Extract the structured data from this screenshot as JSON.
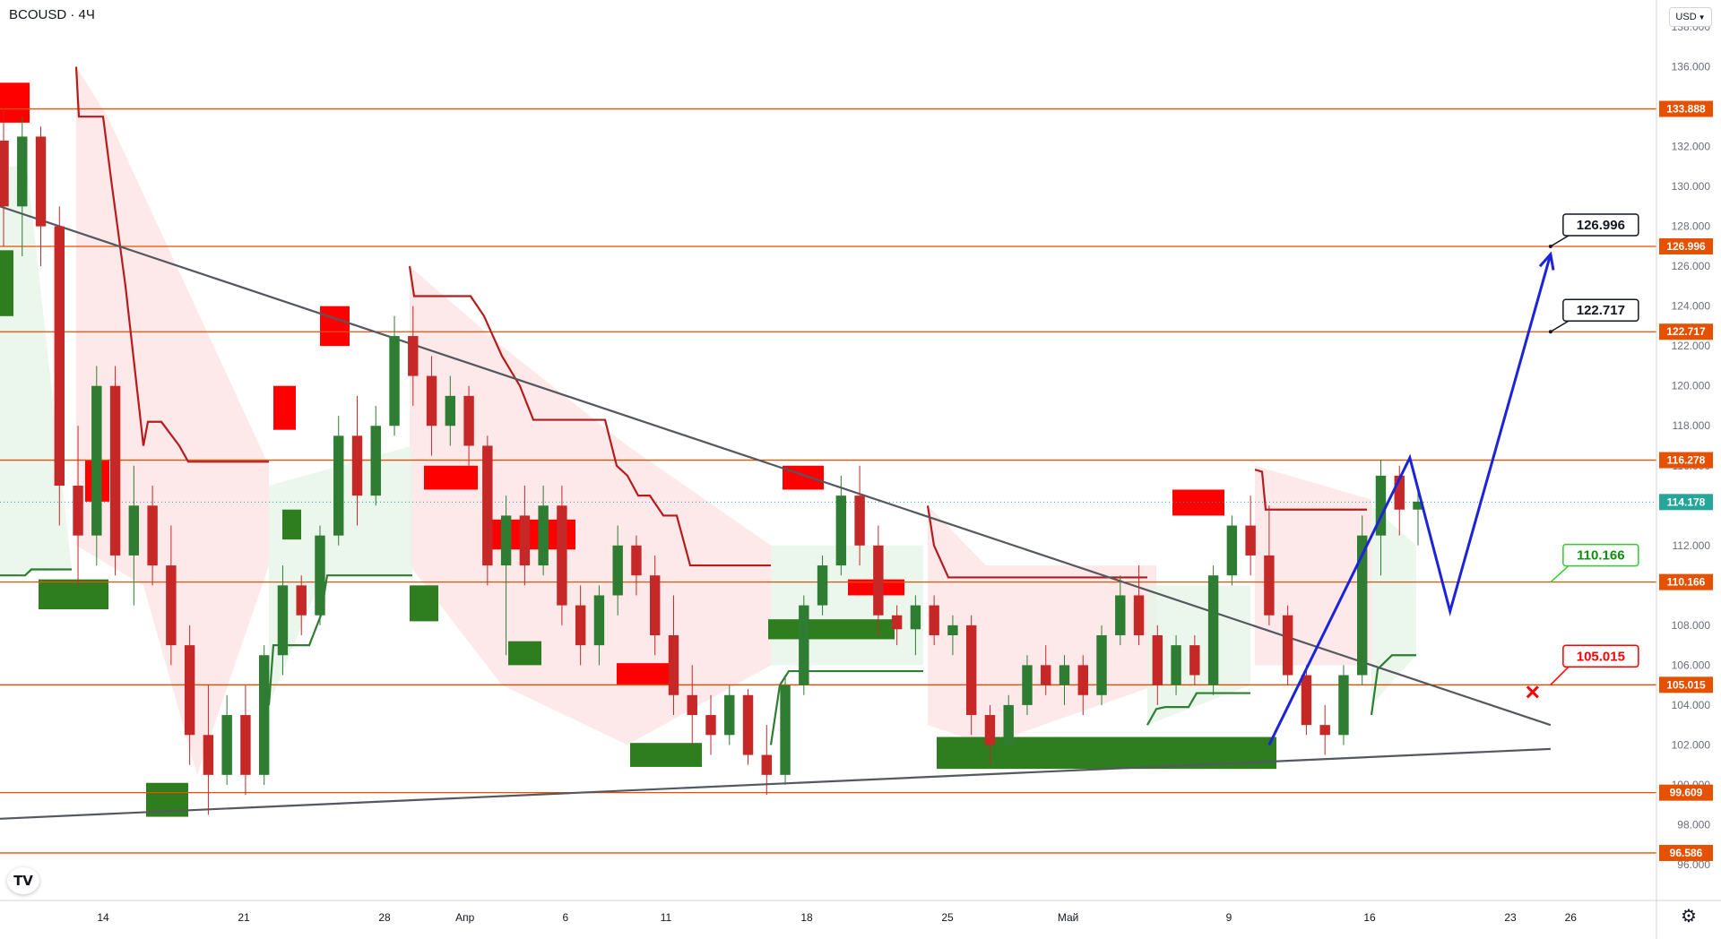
{
  "header": {
    "symbol": "BCOUSD",
    "separator": "·",
    "interval": "4Ч",
    "currency": "USD"
  },
  "icons": {
    "logo": "tradingview-logo-icon",
    "settings": "gear-icon",
    "currency_menu": "chevron-down-icon"
  },
  "colors": {
    "level_line": "#e65100",
    "level_label_bg": "#e65100",
    "price_label_bg": "#26a69a",
    "candle_up": "#2e7d32",
    "candle_down": "#c62828",
    "supply_zone": "#ff0000",
    "demand_zone": "#2e7d1e",
    "stop_bear": "#b71c1c",
    "stop_bull": "#2e7d32",
    "trendline": "#555761",
    "forecast": "#1b24d8",
    "target_callout_border": "#131722",
    "tp_callout": "#33cc33",
    "sl_callout": "#ff0000"
  },
  "chart_data": {
    "type": "candlestick",
    "symbol": "BCOUSD",
    "interval": "4Ч",
    "ylim": [
      96,
      138
    ],
    "y_ticks": [
      "96.000",
      "98.000",
      "100.000",
      "102.000",
      "104.000",
      "106.000",
      "108.000",
      "110.000",
      "112.000",
      "114.000",
      "116.000",
      "118.000",
      "120.000",
      "122.000",
      "124.000",
      "126.000",
      "128.000",
      "130.000",
      "132.000",
      "134.000",
      "136.000",
      "138.000"
    ],
    "x_ticks": [
      "14",
      "21",
      "28",
      "Апр",
      "6",
      "11",
      "18",
      "25",
      "Май",
      "9",
      "16",
      "23",
      "26"
    ],
    "last_price": "114.178",
    "horizontal_levels": [
      {
        "value": 133.888,
        "label": "133.888"
      },
      {
        "value": 126.996,
        "label": "126.996"
      },
      {
        "value": 122.717,
        "label": "122.717"
      },
      {
        "value": 116.278,
        "label": "116.278"
      },
      {
        "value": 110.166,
        "label": "110.166"
      },
      {
        "value": 105.015,
        "label": "105.015"
      },
      {
        "value": 99.609,
        "label": "99.609"
      },
      {
        "value": 96.586,
        "label": "96.586"
      }
    ],
    "callouts": [
      {
        "label": "126.996",
        "price": 126.996,
        "style": "target"
      },
      {
        "label": "122.717",
        "price": 122.717,
        "style": "target"
      },
      {
        "label": "110.166",
        "price": 110.166,
        "style": "take-profit"
      },
      {
        "label": "105.015",
        "price": 105.015,
        "style": "stop-loss"
      }
    ],
    "trendlines": [
      {
        "from": {
          "date": "Mar 08",
          "price": 129.0
        },
        "to": {
          "date": "May 25",
          "price": 103.0
        }
      },
      {
        "from": {
          "date": "Mar 08",
          "price": 98.3
        },
        "to": {
          "date": "May 25",
          "price": 101.8
        }
      }
    ],
    "forecast_path": [
      {
        "date": "May 11",
        "price": 102.0
      },
      {
        "date": "May 18",
        "price": 116.4
      },
      {
        "date": "May 20",
        "price": 108.7
      },
      {
        "date": "May 25",
        "price": 126.6
      }
    ],
    "candles": [
      {
        "o": 132.3,
        "h": 134.0,
        "l": 127.0,
        "c": 129.0
      },
      {
        "o": 129.0,
        "h": 133.5,
        "l": 126.5,
        "c": 132.5
      },
      {
        "o": 132.5,
        "h": 133.0,
        "l": 126.0,
        "c": 128.0
      },
      {
        "o": 128.0,
        "h": 129.0,
        "l": 113.0,
        "c": 115.0
      },
      {
        "o": 115.0,
        "h": 118.0,
        "l": 110.0,
        "c": 112.5
      },
      {
        "o": 112.5,
        "h": 121.0,
        "l": 111.0,
        "c": 120.0
      },
      {
        "o": 120.0,
        "h": 121.0,
        "l": 110.5,
        "c": 111.5
      },
      {
        "o": 111.5,
        "h": 116.0,
        "l": 109.0,
        "c": 114.0
      },
      {
        "o": 114.0,
        "h": 115.0,
        "l": 110.0,
        "c": 111.0
      },
      {
        "o": 111.0,
        "h": 113.0,
        "l": 106.0,
        "c": 107.0
      },
      {
        "o": 107.0,
        "h": 108.0,
        "l": 101.0,
        "c": 102.5
      },
      {
        "o": 102.5,
        "h": 105.0,
        "l": 98.5,
        "c": 100.5
      },
      {
        "o": 100.5,
        "h": 104.5,
        "l": 100.0,
        "c": 103.5
      },
      {
        "o": 103.5,
        "h": 105.0,
        "l": 99.5,
        "c": 100.5
      },
      {
        "o": 100.5,
        "h": 107.0,
        "l": 100.0,
        "c": 106.5
      },
      {
        "o": 106.5,
        "h": 111.0,
        "l": 105.5,
        "c": 110.0
      },
      {
        "o": 110.0,
        "h": 110.5,
        "l": 107.5,
        "c": 108.5
      },
      {
        "o": 108.5,
        "h": 113.0,
        "l": 108.0,
        "c": 112.5
      },
      {
        "o": 112.5,
        "h": 118.5,
        "l": 112.0,
        "c": 117.5
      },
      {
        "o": 117.5,
        "h": 119.5,
        "l": 113.0,
        "c": 114.5
      },
      {
        "o": 114.5,
        "h": 119.0,
        "l": 114.0,
        "c": 118.0
      },
      {
        "o": 118.0,
        "h": 123.5,
        "l": 117.5,
        "c": 122.5
      },
      {
        "o": 122.5,
        "h": 124.0,
        "l": 119.0,
        "c": 120.5
      },
      {
        "o": 120.5,
        "h": 121.5,
        "l": 116.5,
        "c": 118.0
      },
      {
        "o": 118.0,
        "h": 120.5,
        "l": 117.0,
        "c": 119.5
      },
      {
        "o": 119.5,
        "h": 120.0,
        "l": 116.0,
        "c": 117.0
      },
      {
        "o": 117.0,
        "h": 117.5,
        "l": 110.0,
        "c": 111.0
      },
      {
        "o": 111.0,
        "h": 114.5,
        "l": 106.5,
        "c": 113.5
      },
      {
        "o": 113.5,
        "h": 115.0,
        "l": 110.0,
        "c": 111.0
      },
      {
        "o": 111.0,
        "h": 115.0,
        "l": 110.5,
        "c": 114.0
      },
      {
        "o": 114.0,
        "h": 115.0,
        "l": 108.0,
        "c": 109.0
      },
      {
        "o": 109.0,
        "h": 110.0,
        "l": 106.0,
        "c": 107.0
      },
      {
        "o": 107.0,
        "h": 110.0,
        "l": 106.0,
        "c": 109.5
      },
      {
        "o": 109.5,
        "h": 113.0,
        "l": 108.5,
        "c": 112.0
      },
      {
        "o": 112.0,
        "h": 112.5,
        "l": 109.5,
        "c": 110.5
      },
      {
        "o": 110.5,
        "h": 111.5,
        "l": 106.5,
        "c": 107.5
      },
      {
        "o": 107.5,
        "h": 109.5,
        "l": 103.5,
        "c": 104.5
      },
      {
        "o": 104.5,
        "h": 106.0,
        "l": 102.0,
        "c": 103.5
      },
      {
        "o": 103.5,
        "h": 104.5,
        "l": 101.5,
        "c": 102.5
      },
      {
        "o": 102.5,
        "h": 105.0,
        "l": 102.0,
        "c": 104.5
      },
      {
        "o": 104.5,
        "h": 104.8,
        "l": 101.0,
        "c": 101.5
      },
      {
        "o": 101.5,
        "h": 103.0,
        "l": 99.5,
        "c": 100.5
      },
      {
        "o": 100.5,
        "h": 105.5,
        "l": 100.0,
        "c": 105.0
      },
      {
        "o": 105.0,
        "h": 109.5,
        "l": 104.5,
        "c": 109.0
      },
      {
        "o": 109.0,
        "h": 111.5,
        "l": 108.5,
        "c": 111.0
      },
      {
        "o": 111.0,
        "h": 115.5,
        "l": 110.5,
        "c": 114.5
      },
      {
        "o": 114.5,
        "h": 116.0,
        "l": 111.0,
        "c": 112.0
      },
      {
        "o": 112.0,
        "h": 113.0,
        "l": 107.5,
        "c": 108.5
      },
      {
        "o": 108.5,
        "h": 109.0,
        "l": 107.0,
        "c": 107.8
      },
      {
        "o": 107.8,
        "h": 109.5,
        "l": 106.5,
        "c": 109.0
      },
      {
        "o": 109.0,
        "h": 109.5,
        "l": 107.0,
        "c": 107.5
      },
      {
        "o": 107.5,
        "h": 108.5,
        "l": 106.5,
        "c": 108.0
      },
      {
        "o": 108.0,
        "h": 108.5,
        "l": 102.5,
        "c": 103.5
      },
      {
        "o": 103.5,
        "h": 104.0,
        "l": 101.0,
        "c": 102.0
      },
      {
        "o": 102.0,
        "h": 104.5,
        "l": 101.5,
        "c": 104.0
      },
      {
        "o": 104.0,
        "h": 106.5,
        "l": 103.5,
        "c": 106.0
      },
      {
        "o": 106.0,
        "h": 107.0,
        "l": 104.5,
        "c": 105.0
      },
      {
        "o": 105.0,
        "h": 106.5,
        "l": 104.0,
        "c": 106.0
      },
      {
        "o": 106.0,
        "h": 106.5,
        "l": 103.5,
        "c": 104.5
      },
      {
        "o": 104.5,
        "h": 108.0,
        "l": 104.0,
        "c": 107.5
      },
      {
        "o": 107.5,
        "h": 110.5,
        "l": 107.0,
        "c": 109.5
      },
      {
        "o": 109.5,
        "h": 111.0,
        "l": 107.0,
        "c": 107.5
      },
      {
        "o": 107.5,
        "h": 108.0,
        "l": 104.0,
        "c": 105.0
      },
      {
        "o": 105.0,
        "h": 107.5,
        "l": 104.5,
        "c": 107.0
      },
      {
        "o": 107.0,
        "h": 107.5,
        "l": 105.0,
        "c": 105.5
      },
      {
        "o": 105.0,
        "h": 111.0,
        "l": 104.5,
        "c": 110.5
      },
      {
        "o": 110.5,
        "h": 113.5,
        "l": 110.0,
        "c": 113.0
      },
      {
        "o": 113.0,
        "h": 114.5,
        "l": 110.5,
        "c": 111.5
      },
      {
        "o": 111.5,
        "h": 114.0,
        "l": 108.0,
        "c": 108.5
      },
      {
        "o": 108.5,
        "h": 109.0,
        "l": 105.0,
        "c": 105.5
      },
      {
        "o": 105.5,
        "h": 106.0,
        "l": 102.5,
        "c": 103.0
      },
      {
        "o": 103.0,
        "h": 104.0,
        "l": 101.5,
        "c": 102.5
      },
      {
        "o": 102.5,
        "h": 106.0,
        "l": 102.0,
        "c": 105.5
      },
      {
        "o": 105.5,
        "h": 113.5,
        "l": 105.0,
        "c": 112.5
      },
      {
        "o": 112.5,
        "h": 116.3,
        "l": 110.5,
        "c": 115.5
      },
      {
        "o": 115.5,
        "h": 116.0,
        "l": 112.5,
        "c": 113.8
      },
      {
        "o": 113.8,
        "h": 114.8,
        "l": 112.0,
        "c": 114.2
      }
    ]
  }
}
